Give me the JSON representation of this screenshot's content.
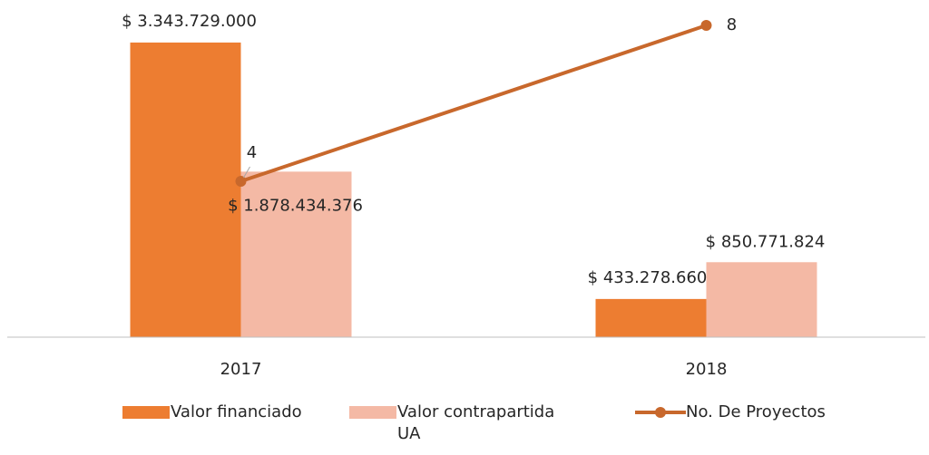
{
  "chart_data": {
    "type": "bar-line",
    "categories": [
      "2017",
      "2018"
    ],
    "ylim": [
      0,
      3600000000
    ],
    "y2lim": [
      0,
      8.14
    ],
    "series": [
      {
        "name": "Valor financiado",
        "type": "bar",
        "color": "#ed7d31",
        "values": [
          3343729000,
          433278660
        ],
        "value_labels": [
          "$ 3.343.729.000",
          "$ 433.278.660"
        ]
      },
      {
        "name": "Valor contrapartida UA",
        "type": "bar",
        "color": "#f4b9a5",
        "values": [
          1878434376,
          850771824
        ],
        "value_labels": [
          "$ 1.878.434.376",
          "$ 850.771.824"
        ]
      },
      {
        "name": "No. De Proyectos",
        "type": "line",
        "axis": "y2",
        "color": "#c8682c",
        "values": [
          4,
          8
        ]
      }
    ]
  }
}
